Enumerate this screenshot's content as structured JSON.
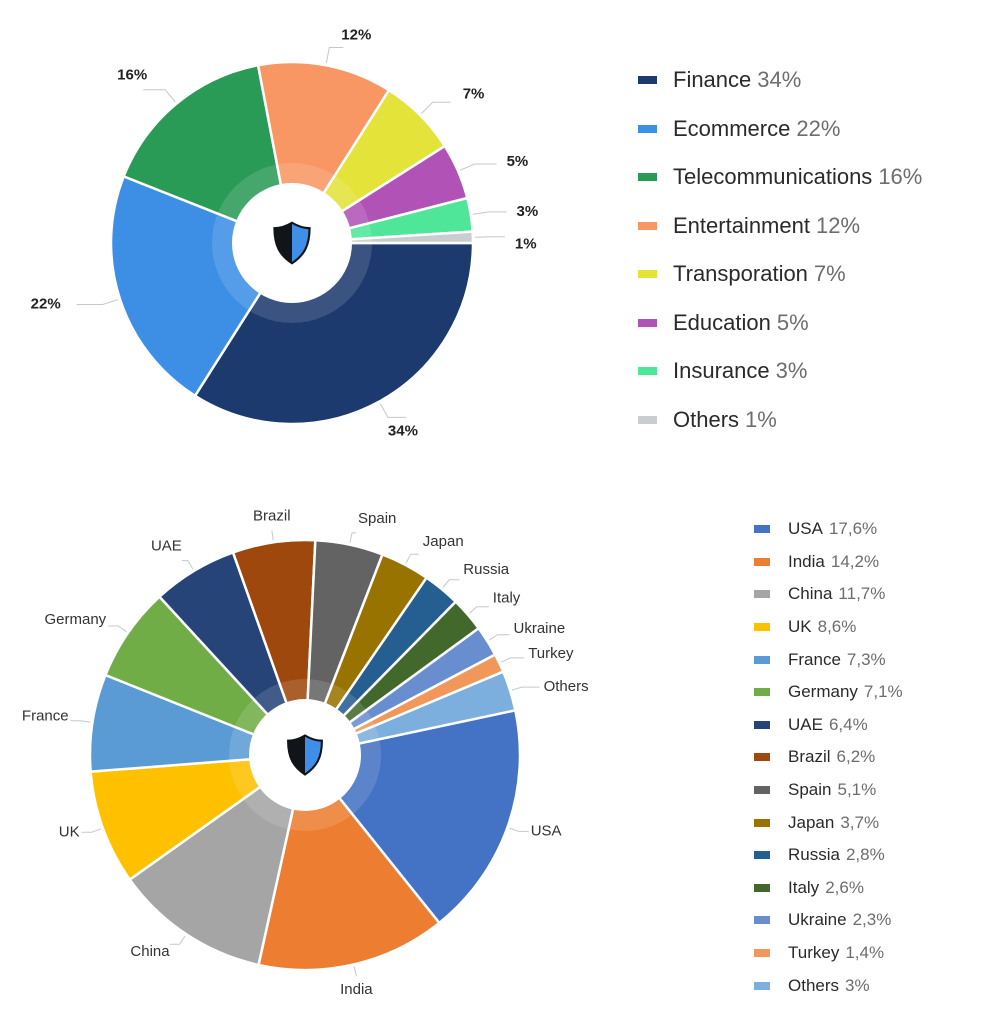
{
  "chart_data": [
    {
      "type": "pie",
      "title": "",
      "categories": [
        "Finance",
        "Ecommerce",
        "Telecommunications",
        "Entertainment",
        "Transporation",
        "Education",
        "Insurance",
        "Others"
      ],
      "values": [
        34,
        22,
        16,
        12,
        7,
        5,
        3,
        1
      ],
      "slice_labels": [
        "34%",
        "22%",
        "16%",
        "12%",
        "7%",
        "5%",
        "3%",
        "1%"
      ],
      "legend_values": [
        "34%",
        "22%",
        "16%",
        "12%",
        "7%",
        "5%",
        "3%",
        "1%"
      ],
      "colors": [
        "#1d3a6e",
        "#3d8fe6",
        "#2a9a57",
        "#f89763",
        "#e3e33a",
        "#b152b6",
        "#4fe69a",
        "#c9ccd1"
      ],
      "legend_position": "right",
      "center_icon": "shield-icon"
    },
    {
      "type": "pie",
      "title": "",
      "categories": [
        "USA",
        "India",
        "China",
        "UK",
        "France",
        "Germany",
        "UAE",
        "Brazil",
        "Spain",
        "Japan",
        "Russia",
        "Italy",
        "Ukraine",
        "Turkey",
        "Others"
      ],
      "values": [
        17.6,
        14.2,
        11.7,
        8.6,
        7.3,
        7.1,
        6.4,
        6.2,
        5.1,
        3.7,
        2.8,
        2.6,
        2.3,
        1.4,
        3
      ],
      "legend_values": [
        "17,6%",
        "14,2%",
        "11,7%",
        "8,6%",
        "7,3%",
        "7,1%",
        "6,4%",
        "6,2%",
        "5,1%",
        "3,7%",
        "2,8%",
        "2,6%",
        "2,3%",
        "1,4%",
        "3%"
      ],
      "colors": [
        "#4472c4",
        "#ed7d31",
        "#a5a5a5",
        "#ffc000",
        "#5b9bd5",
        "#70ad47",
        "#264478",
        "#9e480e",
        "#636363",
        "#997300",
        "#255e91",
        "#43682b",
        "#698ed0",
        "#f1975a",
        "#7cafdd"
      ],
      "legend_position": "right",
      "center_icon": "shield-icon"
    }
  ]
}
